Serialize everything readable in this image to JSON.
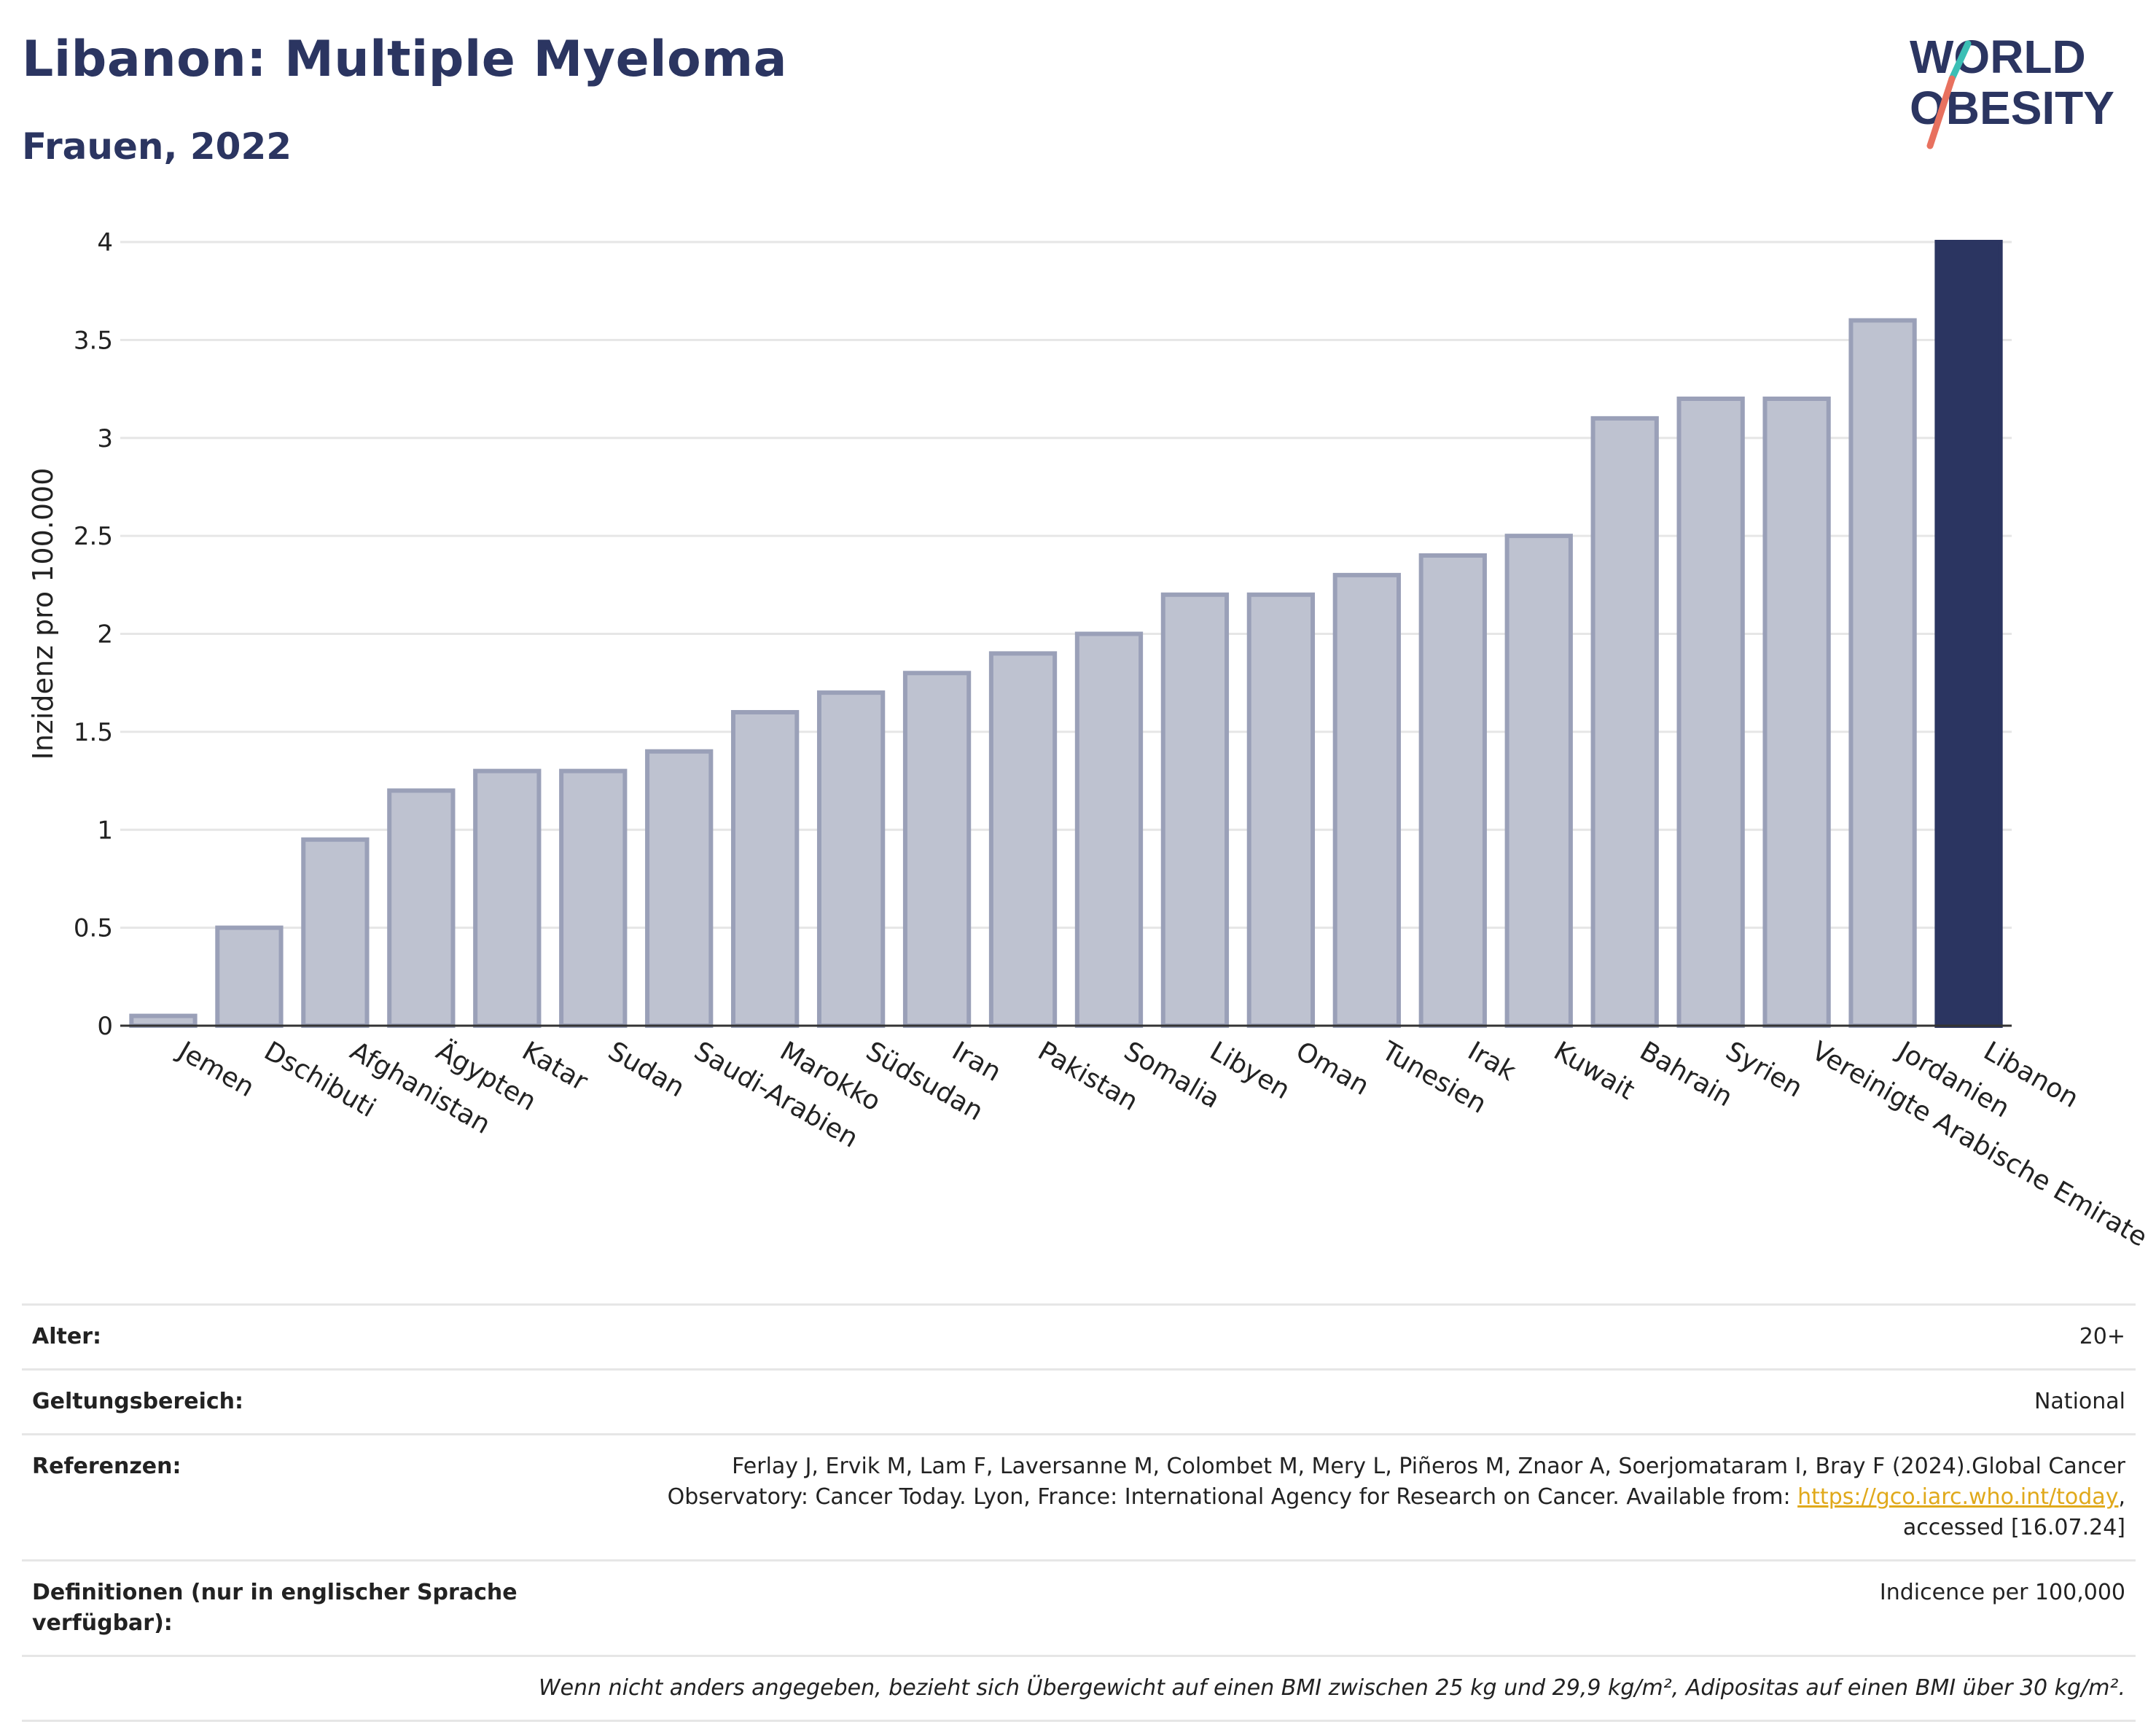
{
  "header": {
    "title": "Libanon: Multiple Myeloma",
    "subtitle": "Frauen, 2022"
  },
  "logo": {
    "line1": "WORLD",
    "line2": "OBESITY"
  },
  "colors": {
    "bar": "#bec2d0",
    "bar_stroke": "#9aa0b8",
    "highlight": "#2b3561",
    "grid": "#e6e6e6"
  },
  "chart_data": {
    "type": "bar",
    "ylabel": "Inzidenz pro 100.000",
    "ylim": [
      0,
      4
    ],
    "yticks": [
      "0",
      "0.5",
      "1",
      "1.5",
      "2",
      "2.5",
      "3",
      "3.5",
      "4"
    ],
    "categories": [
      "Jemen",
      "Dschibuti",
      "Afghanistan",
      "Ägypten",
      "Katar",
      "Sudan",
      "Saudi-Arabien",
      "Marokko",
      "Südsudan",
      "Iran",
      "Pakistan",
      "Somalia",
      "Libyen",
      "Oman",
      "Tunesien",
      "Irak",
      "Kuwait",
      "Bahrain",
      "Syrien",
      "Vereinigte Arabische Emirate",
      "Jordanien",
      "Libanon"
    ],
    "values": [
      0.05,
      0.5,
      0.95,
      1.2,
      1.3,
      1.3,
      1.4,
      1.6,
      1.7,
      1.8,
      1.9,
      2.0,
      2.2,
      2.2,
      2.3,
      2.4,
      2.5,
      3.1,
      3.2,
      3.2,
      3.6,
      4.0
    ],
    "highlight": "Libanon",
    "grid": true
  },
  "meta": {
    "age_label": "Alter:",
    "age_value": "20+",
    "scope_label": "Geltungsbereich:",
    "scope_value": "National",
    "ref_label": "Referenzen:",
    "ref_text_1": "Ferlay J, Ervik M, Lam F, Laversanne M, Colombet M, Mery L, Piñeros M, Znaor A, Soerjomataram I, Bray F (2024).Global Cancer Observatory: Cancer Today. Lyon, France: International Agency for Research on Cancer. Available from: ",
    "ref_link": "https://gco.iarc.who.int/today",
    "ref_text_2": ", accessed [16.07.24]",
    "def_label": "Definitionen (nur in englischer Sprache verfügbar):",
    "def_value": "Indicence per 100,000",
    "note": "Wenn nicht anders angegeben, bezieht sich Übergewicht auf einen BMI zwischen 25 kg und 29,9 kg/m², Adipositas auf einen BMI über 30 kg/m²."
  }
}
